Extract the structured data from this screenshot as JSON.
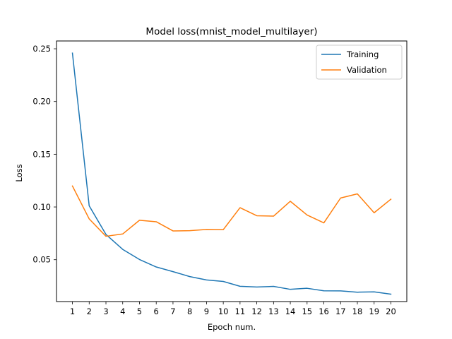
{
  "chart_data": {
    "type": "line",
    "title": "Model loss(mnist_model_multilayer)",
    "xlabel": "Epoch num.",
    "ylabel": "Loss",
    "x": [
      1,
      2,
      3,
      4,
      5,
      6,
      7,
      8,
      9,
      10,
      11,
      12,
      13,
      14,
      15,
      16,
      17,
      18,
      19,
      20
    ],
    "xticks": [
      "1",
      "2",
      "3",
      "4",
      "5",
      "6",
      "7",
      "8",
      "9",
      "10",
      "11",
      "12",
      "13",
      "14",
      "15",
      "16",
      "17",
      "18",
      "19",
      "20"
    ],
    "xlim": [
      0.05,
      20.95
    ],
    "ylim": [
      0.0103,
      0.2574
    ],
    "yticks": [
      {
        "value": 0.05,
        "label": "0.05"
      },
      {
        "value": 0.1,
        "label": "0.10"
      },
      {
        "value": 0.15,
        "label": "0.15"
      },
      {
        "value": 0.2,
        "label": "0.20"
      },
      {
        "value": 0.25,
        "label": "0.25"
      }
    ],
    "grid": false,
    "legend_position": "top-right",
    "series": [
      {
        "name": "Training",
        "color": "#1f77b4",
        "values": [
          0.2459,
          0.1011,
          0.074,
          0.0598,
          0.0502,
          0.0431,
          0.0387,
          0.034,
          0.0308,
          0.0294,
          0.0248,
          0.0241,
          0.0247,
          0.0219,
          0.0229,
          0.0205,
          0.0204,
          0.0192,
          0.0195,
          0.0173
        ]
      },
      {
        "name": "Validation",
        "color": "#ff7f0e",
        "values": [
          0.1199,
          0.0887,
          0.0722,
          0.0744,
          0.0874,
          0.086,
          0.0773,
          0.0775,
          0.0787,
          0.0785,
          0.0993,
          0.0917,
          0.0913,
          0.1054,
          0.0924,
          0.0849,
          0.1085,
          0.1124,
          0.0945,
          0.1074
        ]
      }
    ]
  }
}
